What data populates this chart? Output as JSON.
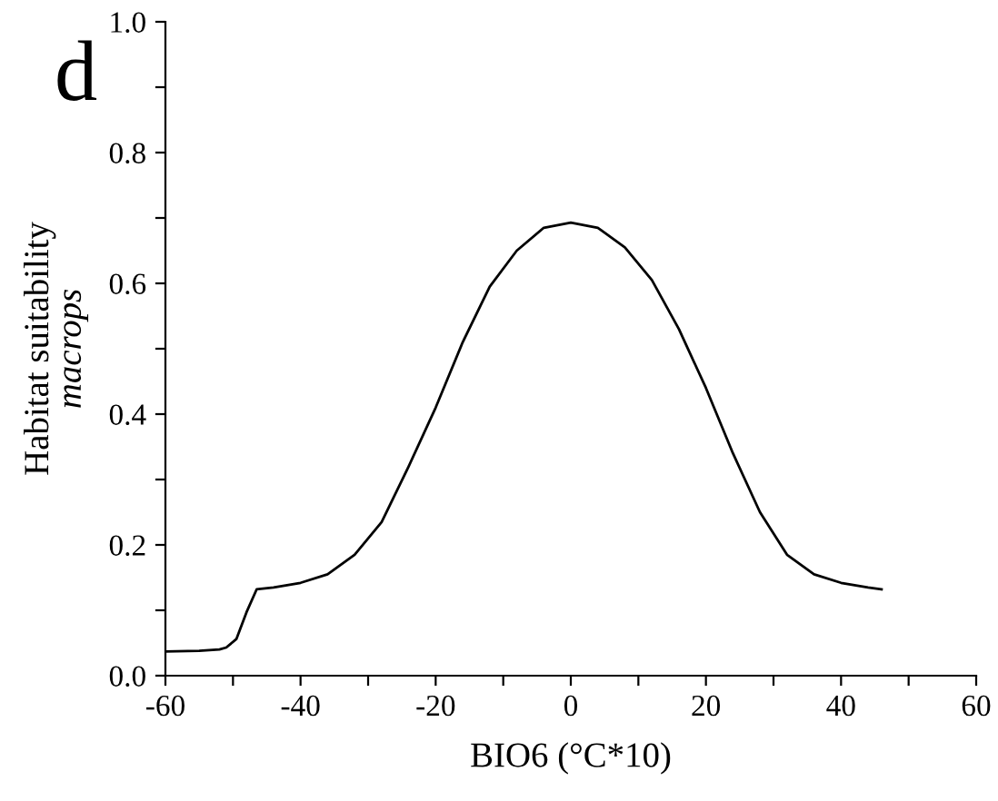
{
  "chart_data": {
    "type": "line",
    "xlabel": "BIO6 (°C*10)",
    "ylabel": "Habitat suitability\nmacrops",
    "annotations": [
      "d"
    ],
    "x": [
      -60,
      -55,
      -52,
      -51,
      -49.5,
      -48,
      -46.5,
      -44,
      -40,
      -36,
      -32,
      -28,
      -24,
      -20,
      -16,
      -12,
      -8,
      -4,
      0,
      4,
      8,
      12,
      16,
      20,
      24,
      28,
      32,
      36,
      40,
      44,
      46
    ],
    "series": [
      {
        "color": "#000000",
        "values": [
          0.037,
          0.038,
          0.04,
          0.043,
          0.056,
          0.097,
          0.132,
          0.135,
          0.142,
          0.155,
          0.185,
          0.235,
          0.32,
          0.41,
          0.51,
          0.595,
          0.65,
          0.685,
          0.693,
          0.685,
          0.655,
          0.605,
          0.53,
          0.44,
          0.34,
          0.25,
          0.185,
          0.155,
          0.142,
          0.135,
          0.132
        ]
      }
    ],
    "xlim": [
      -60,
      60
    ],
    "ylim": [
      0,
      1.0
    ],
    "xticks": [
      -60,
      {
        "value": -50,
        "label": null
      },
      -40,
      {
        "value": -30,
        "label": null
      },
      -20,
      {
        "value": -10,
        "label": null
      },
      0,
      {
        "value": 10,
        "label": null
      },
      20,
      {
        "value": 30,
        "label": null
      },
      40,
      {
        "value": 50,
        "label": null
      },
      60
    ],
    "yticks": [
      {
        "value": 0,
        "label": "0.0"
      },
      {
        "value": 0.1,
        "label": null
      },
      0.2,
      {
        "value": 0.3,
        "label": null
      },
      0.4,
      {
        "value": 0.5,
        "label": null
      },
      0.6,
      {
        "value": 0.7,
        "label": null
      },
      0.8,
      {
        "value": 0.9,
        "label": null
      },
      {
        "value": 1.0,
        "label": "1.0"
      }
    ],
    "grid": false,
    "legend": false,
    "marker": "none",
    "line_style": "solid"
  }
}
